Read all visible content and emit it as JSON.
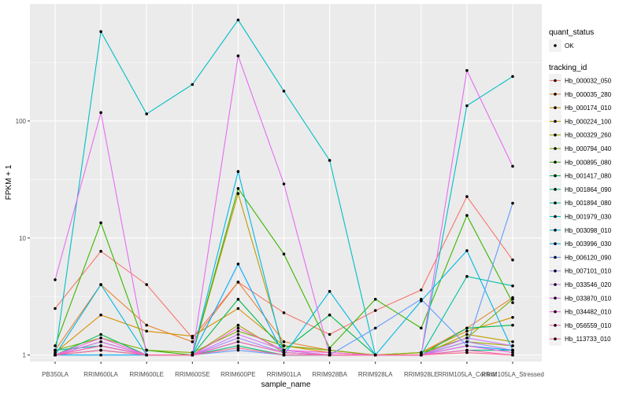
{
  "chart_data": {
    "type": "line",
    "xlabel": "sample_name",
    "ylabel": "FPKM + 1",
    "y_scale": "log10",
    "ylim": [
      0.88,
      1000
    ],
    "y_ticks": [
      1,
      10,
      100
    ],
    "y_tick_labels": [
      "1",
      "10",
      "100"
    ],
    "grid": true,
    "legend_position": "right",
    "categories": [
      "PB350LA",
      "RRIM600LA",
      "RRIM600LE",
      "RRIM600SE",
      "RRIM600PE",
      "RRIM901LA",
      "RRIM928BA",
      "RRIM928LA",
      "RRIM928LE",
      "RRIM105LA_Control",
      "RRIM105LA_Stressed"
    ],
    "point_legend": {
      "title": "quant_status",
      "label": "OK"
    },
    "series_legend_title": "tracking_id",
    "series": [
      {
        "name": "Hb_000032_050",
        "color": "#F8766D",
        "values": [
          2.5,
          7.7,
          4.0,
          1.4,
          4.2,
          2.3,
          1.5,
          2.4,
          3.6,
          22.6,
          6.5
        ]
      },
      {
        "name": "Hb_000035_280",
        "color": "#EA8331",
        "values": [
          1.1,
          4.0,
          1.8,
          1.3,
          4.2,
          1.3,
          1.1,
          1.0,
          1.05,
          1.7,
          3.1
        ]
      },
      {
        "name": "Hb_000174_010",
        "color": "#D89000",
        "values": [
          1.05,
          2.2,
          1.6,
          1.45,
          2.5,
          1.2,
          1.05,
          1.0,
          1.05,
          1.6,
          2.1
        ]
      },
      {
        "name": "Hb_000224_100",
        "color": "#C09B00",
        "values": [
          1.0,
          1.3,
          1.0,
          1.0,
          24.0,
          1.1,
          1.0,
          1.0,
          1.0,
          1.5,
          1.3
        ]
      },
      {
        "name": "Hb_000329_260",
        "color": "#A3A500",
        "values": [
          1.0,
          1.2,
          1.0,
          1.0,
          1.8,
          1.05,
          1.0,
          1.0,
          1.0,
          1.3,
          1.2
        ]
      },
      {
        "name": "Hb_000794_040",
        "color": "#7CAE00",
        "values": [
          1.1,
          1.4,
          1.1,
          1.05,
          1.6,
          1.2,
          1.1,
          1.0,
          1.05,
          1.4,
          3.0
        ]
      },
      {
        "name": "Hb_000895_080",
        "color": "#39B600",
        "values": [
          1.2,
          13.5,
          1.1,
          1.0,
          26.5,
          7.3,
          1.15,
          3.0,
          1.7,
          15.6,
          2.8
        ]
      },
      {
        "name": "Hb_001417_080",
        "color": "#00BB4E",
        "values": [
          1.0,
          1.5,
          1.0,
          1.0,
          3.0,
          1.1,
          2.2,
          1.0,
          1.0,
          1.7,
          1.8
        ]
      },
      {
        "name": "Hb_001864_090",
        "color": "#00BF7D",
        "values": [
          1.0,
          1.1,
          1.0,
          1.0,
          1.2,
          1.0,
          1.0,
          1.0,
          1.0,
          1.1,
          1.1
        ]
      },
      {
        "name": "Hb_001894_080",
        "color": "#00C1A3",
        "values": [
          1.1,
          1.2,
          1.0,
          1.0,
          1.3,
          1.05,
          1.0,
          1.0,
          1.0,
          4.7,
          3.9
        ]
      },
      {
        "name": "Hb_001979_030",
        "color": "#00BFC4",
        "values": [
          1.0,
          580.0,
          115.0,
          205.0,
          730.0,
          180.0,
          46.0,
          1.0,
          1.0,
          135.0,
          240.0
        ]
      },
      {
        "name": "Hb_003098_010",
        "color": "#00B8E5",
        "values": [
          1.0,
          4.0,
          1.0,
          1.0,
          37.0,
          1.0,
          3.5,
          1.0,
          2.9,
          7.8,
          1.1
        ]
      },
      {
        "name": "Hb_003996_030",
        "color": "#00ABFD",
        "values": [
          1.0,
          1.0,
          1.0,
          1.0,
          6.0,
          1.0,
          1.0,
          1.0,
          1.0,
          1.2,
          1.1
        ]
      },
      {
        "name": "Hb_006120_090",
        "color": "#619CFF",
        "values": [
          1.0,
          1.1,
          1.0,
          1.0,
          1.1,
          1.0,
          1.0,
          1.7,
          3.0,
          1.2,
          19.8
        ]
      },
      {
        "name": "Hb_007101_010",
        "color": "#A58AFF",
        "values": [
          1.0,
          1.2,
          1.0,
          1.0,
          1.4,
          1.05,
          1.0,
          1.0,
          1.0,
          1.3,
          1.1
        ]
      },
      {
        "name": "Hb_033546_020",
        "color": "#CF78FF",
        "values": [
          1.0,
          1.3,
          1.0,
          1.0,
          1.5,
          1.1,
          1.0,
          1.0,
          1.0,
          1.4,
          1.2
        ]
      },
      {
        "name": "Hb_033870_010",
        "color": "#E76BF3",
        "values": [
          4.4,
          118.0,
          1.0,
          1.0,
          360.0,
          29.0,
          1.0,
          1.0,
          1.0,
          270.0,
          41.0
        ]
      },
      {
        "name": "Hb_034482_010",
        "color": "#F763E0",
        "values": [
          1.0,
          1.4,
          1.0,
          1.0,
          1.7,
          1.1,
          1.05,
          1.0,
          1.0,
          1.2,
          1.05
        ]
      },
      {
        "name": "Hb_056559_010",
        "color": "#FF62BC",
        "values": [
          1.0,
          1.2,
          1.0,
          1.0,
          1.3,
          1.05,
          1.0,
          1.0,
          1.0,
          1.1,
          1.0
        ]
      },
      {
        "name": "Hb_113733_010",
        "color": "#FF6C91",
        "values": [
          1.0,
          1.1,
          1.0,
          1.0,
          1.15,
          1.0,
          1.0,
          1.0,
          1.0,
          1.05,
          1.0
        ]
      }
    ]
  }
}
